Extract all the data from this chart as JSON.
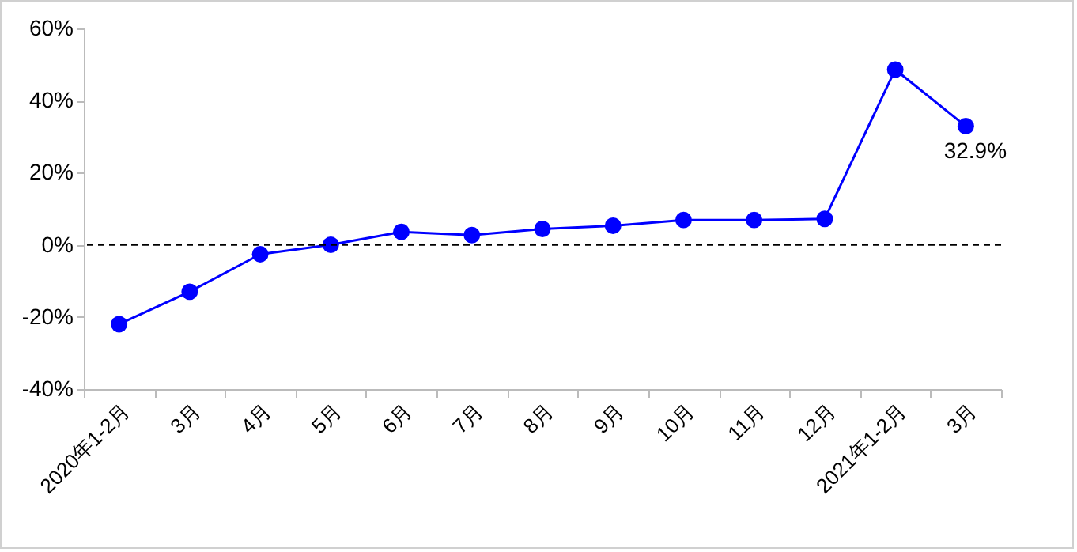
{
  "chart_data": {
    "type": "line",
    "categories": [
      "2020年1-2月",
      "3月",
      "4月",
      "5月",
      "6月",
      "7月",
      "8月",
      "9月",
      "10月",
      "11月",
      "12月",
      "2021年1-2月",
      "3月"
    ],
    "series": [
      {
        "color": "#0000ff",
        "values": [
          -22,
          -13,
          -2.6,
          0,
          3.6,
          2.7,
          4.4,
          5.3,
          6.9,
          6.9,
          7.2,
          48.6,
          32.9
        ],
        "value_labels": [
          null,
          null,
          null,
          null,
          null,
          null,
          null,
          null,
          null,
          null,
          null,
          null,
          "32.9%"
        ]
      }
    ],
    "ylim": [
      -40,
      60
    ],
    "yticks": [
      {
        "value": -40,
        "label": "-40%"
      },
      {
        "value": -20,
        "label": "-20%"
      },
      {
        "value": 0,
        "label": "0%"
      },
      {
        "value": 20,
        "label": "20%"
      },
      {
        "value": 40,
        "label": "40%"
      },
      {
        "value": 60,
        "label": "60%"
      }
    ],
    "ref_lines": [
      {
        "axis": "y",
        "value": 0,
        "color": "#000000",
        "line_style": "dashed"
      }
    ],
    "marker": "circle",
    "grid": false
  }
}
